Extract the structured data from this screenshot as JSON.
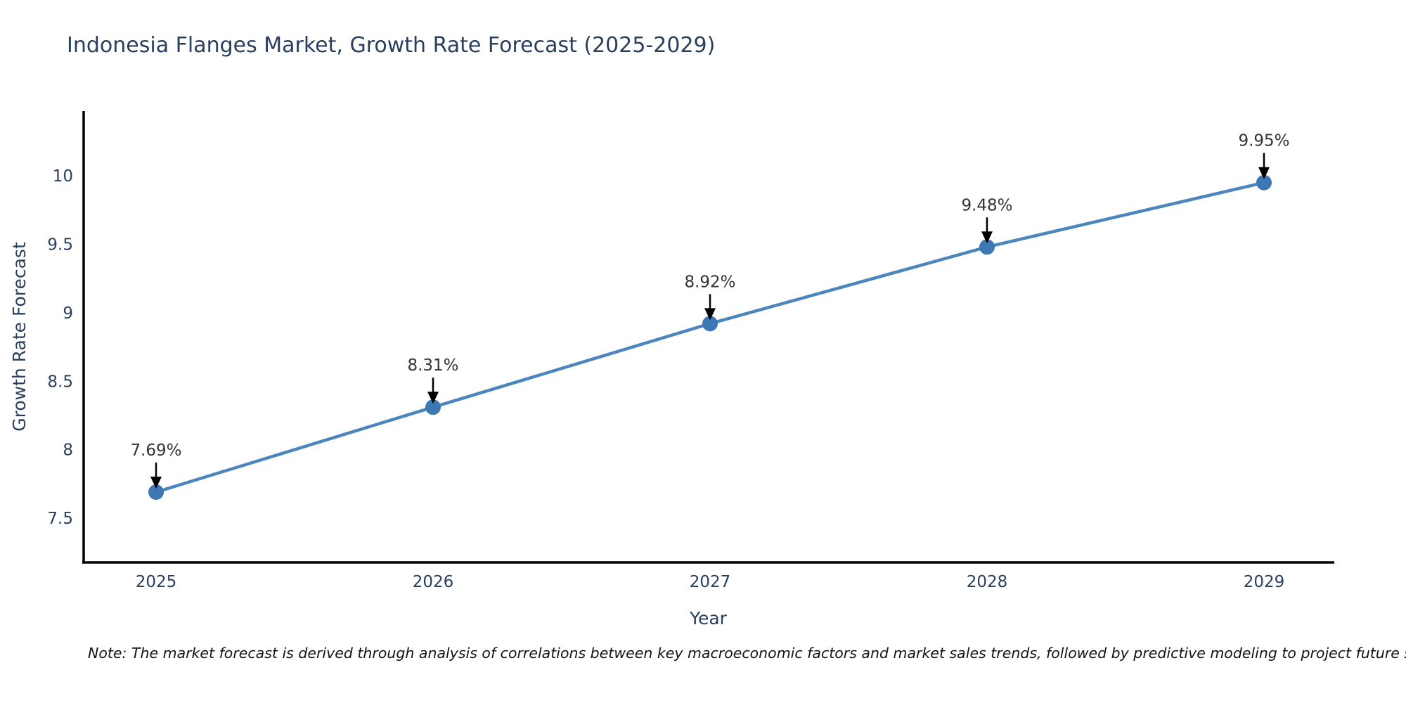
{
  "title": "Indonesia Flanges Market, Growth Rate Forecast (2025-2029)",
  "note": "Note: The market forecast is derived through analysis of correlations between key macroeconomic factors and market sales trends, followed by predictive modeling to project future sales",
  "chart_data": {
    "type": "line",
    "title": "Indonesia Flanges Market, Growth Rate Forecast (2025-2029)",
    "xlabel": "Year",
    "ylabel": "Growth Rate Forecast",
    "categories": [
      "2025",
      "2026",
      "2027",
      "2028",
      "2029"
    ],
    "values": [
      7.69,
      8.31,
      8.92,
      9.48,
      9.95
    ],
    "point_labels": [
      "7.69%",
      "8.31%",
      "8.92%",
      "9.48%",
      "9.95%"
    ],
    "series_name": "Growth Rate Forecast",
    "yticks": [
      "7.5",
      "8",
      "8.5",
      "9",
      "9.5",
      "10"
    ],
    "ytick_values": [
      7.5,
      8,
      8.5,
      9,
      9.5,
      10
    ],
    "ylim": [
      7.2,
      10.3
    ],
    "grid": false,
    "legend_position": "none",
    "annotation_arrows": "down",
    "colors": {
      "line": "#4d86bd",
      "marker": "#3d78b2",
      "arrow": "#000000",
      "axis": "#000000",
      "axis_text": "#2a3f5f",
      "annotation_text": "#333333",
      "background": "#ffffff"
    }
  }
}
